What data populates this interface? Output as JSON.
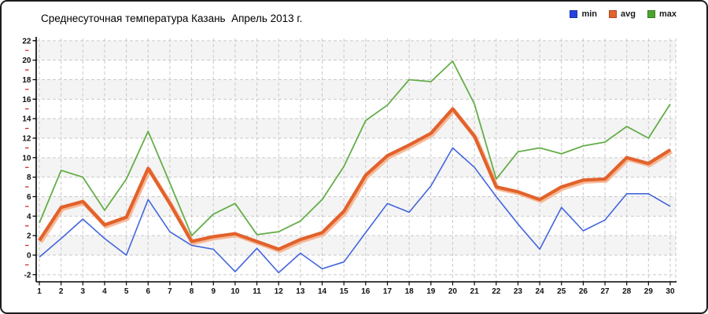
{
  "title": "Среднесуточная температура Казань  Апрель 2013 г.",
  "legend": {
    "items": [
      {
        "label": "min",
        "color": "#2443dd"
      },
      {
        "label": "avg",
        "color": "#e2622b"
      },
      {
        "label": "max",
        "color": "#4da32d"
      }
    ]
  },
  "chart_data": {
    "type": "line",
    "title": "Среднесуточная температура Казань  Апрель 2013 г.",
    "xlabel": "",
    "ylabel": "",
    "x": [
      1,
      2,
      3,
      4,
      5,
      6,
      7,
      8,
      9,
      10,
      11,
      12,
      13,
      14,
      15,
      16,
      17,
      18,
      19,
      20,
      21,
      22,
      23,
      24,
      25,
      26,
      27,
      28,
      29,
      30
    ],
    "series": [
      {
        "name": "min",
        "color": "#4365dd",
        "width": 1.6,
        "values": [
          -0.2,
          1.7,
          3.7,
          1.7,
          0.0,
          5.7,
          2.4,
          1.0,
          0.6,
          -1.7,
          0.7,
          -1.8,
          0.2,
          -1.4,
          -0.7,
          2.3,
          5.3,
          4.4,
          7.1,
          11.0,
          9.0,
          6.0,
          3.2,
          0.6,
          4.9,
          2.5,
          3.6,
          6.3,
          6.3,
          5.0
        ]
      },
      {
        "name": "avg",
        "color": "#e2622b",
        "width": 4.2,
        "halo": "#f5b28e",
        "values": [
          1.5,
          4.9,
          5.5,
          3.1,
          3.9,
          8.9,
          5.3,
          1.4,
          1.9,
          2.2,
          1.4,
          0.6,
          1.6,
          2.3,
          4.5,
          8.2,
          10.2,
          11.3,
          12.5,
          15.0,
          12.2,
          7.0,
          6.5,
          5.7,
          7.0,
          7.7,
          7.8,
          10.0,
          9.4,
          10.8
        ]
      },
      {
        "name": "max",
        "color": "#64ae49",
        "width": 1.8,
        "values": [
          3.3,
          8.7,
          8.0,
          4.6,
          7.8,
          12.7,
          7.4,
          2.0,
          4.2,
          5.3,
          2.1,
          2.4,
          3.5,
          5.7,
          9.1,
          13.8,
          15.4,
          18.0,
          17.8,
          19.9,
          15.5,
          7.8,
          10.6,
          11.0,
          10.4,
          11.2,
          11.6,
          13.2,
          12.0,
          15.5
        ]
      }
    ],
    "ylim": [
      -2.8,
      22
    ],
    "yticks": [
      22,
      20,
      18,
      16,
      14,
      12,
      10,
      8,
      6,
      4,
      2,
      0,
      -2
    ],
    "minor_yticks": [
      21,
      19,
      17,
      15,
      13,
      11,
      9,
      7,
      5,
      3,
      1,
      -1
    ],
    "grid": true,
    "legend_position": "top-right",
    "style": {
      "band_colors": [
        "#f4f4f4",
        "#ffffff"
      ],
      "gridline_color": "#c9c9c9",
      "axis_color": "#000000",
      "major_tick_color": "#000000",
      "minor_tick_color": "#d32f27",
      "tick_label_color": "#111111"
    }
  }
}
